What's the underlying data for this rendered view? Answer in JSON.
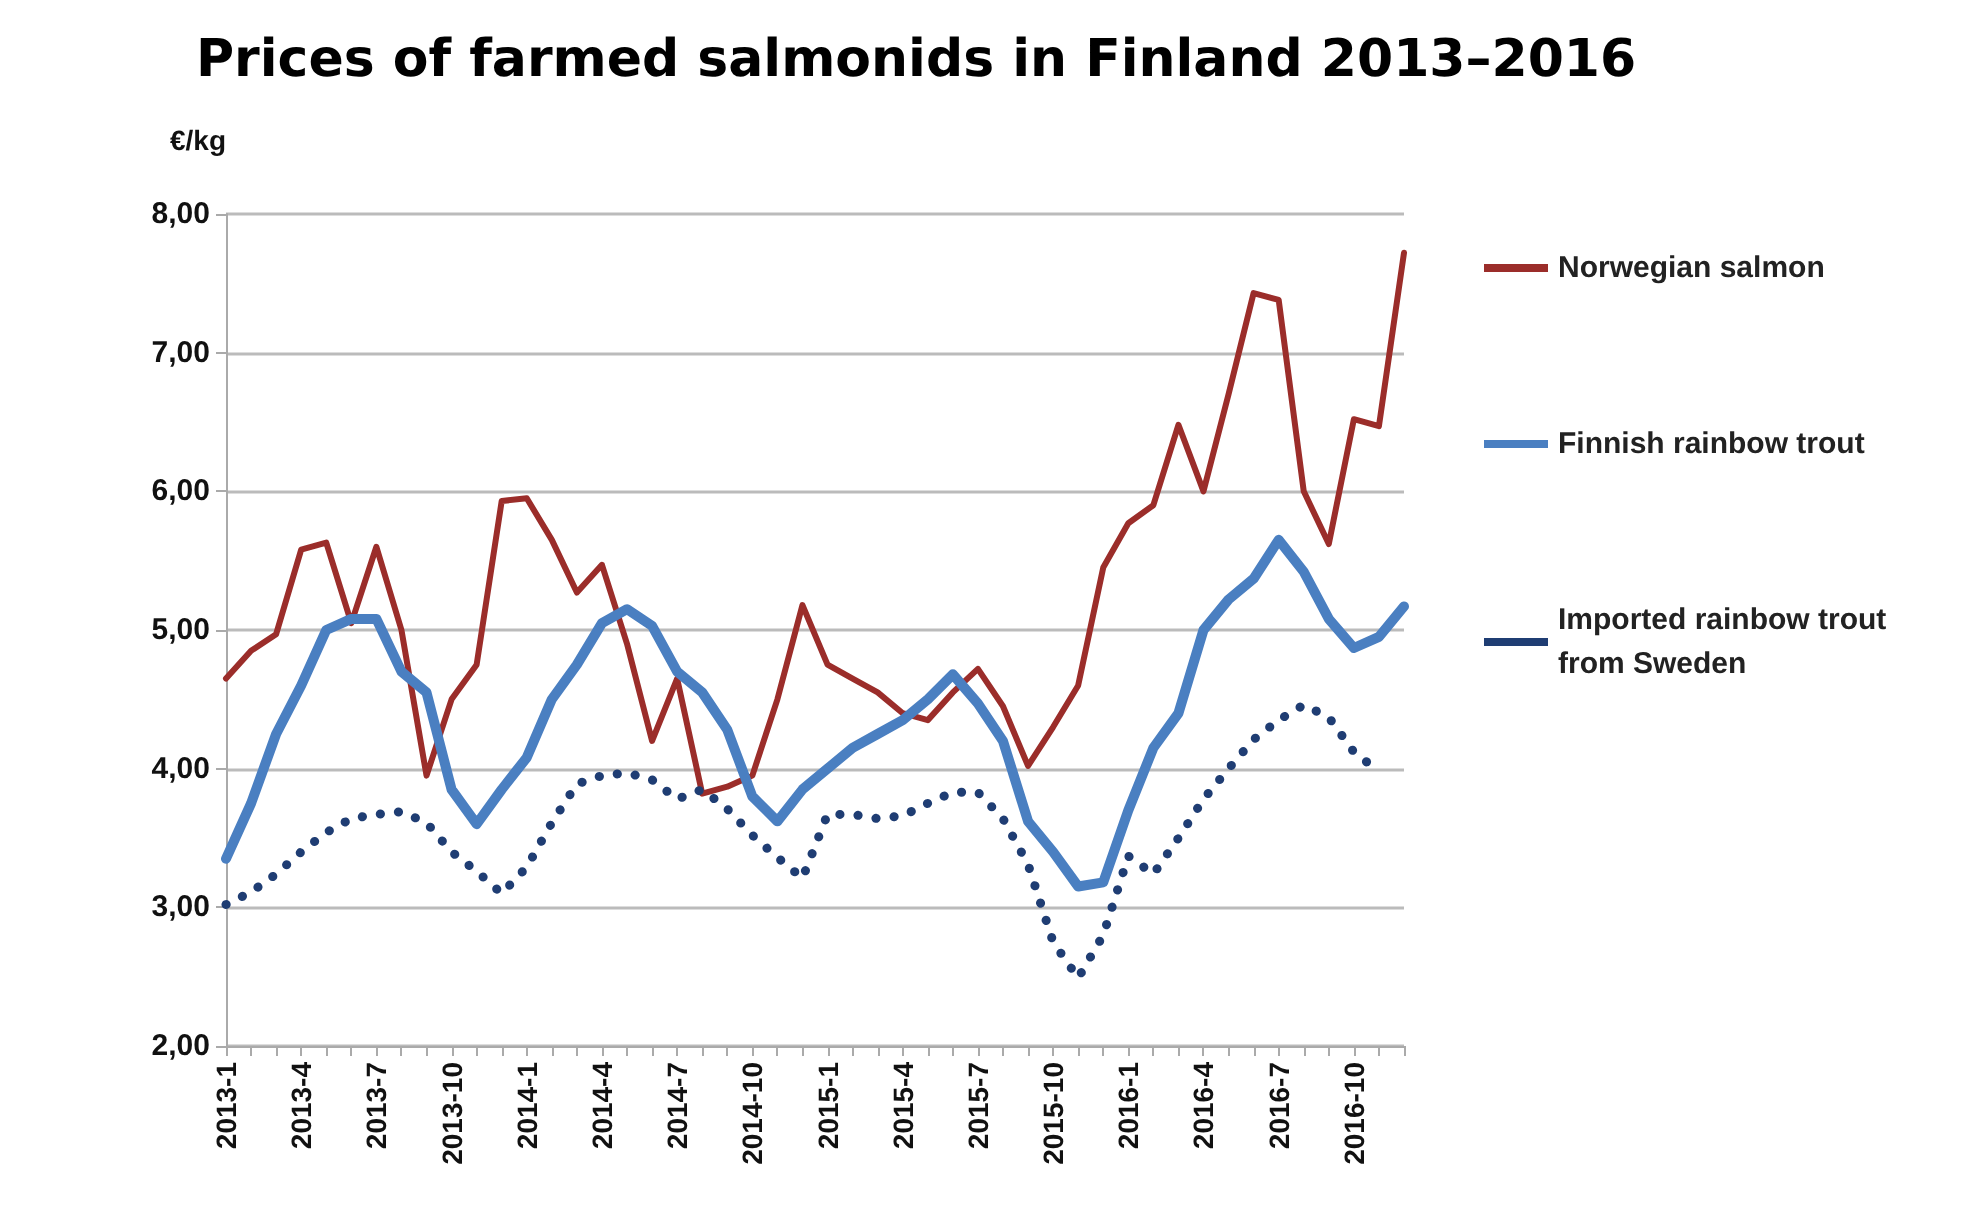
{
  "chart_data": {
    "type": "line",
    "title": "Prices of farmed salmonids in Finland 2013–2016",
    "ylabel": "€/kg",
    "categories": [
      "2013-1",
      null,
      null,
      "2013-4",
      null,
      null,
      "2013-7",
      null,
      null,
      "2013-10",
      null,
      null,
      "2014-1",
      null,
      null,
      "2014-4",
      null,
      null,
      "2014-7",
      null,
      null,
      "2014-10",
      null,
      null,
      "2015-1",
      null,
      null,
      "2015-4",
      null,
      null,
      "2015-7",
      null,
      null,
      "2015-10",
      null,
      null,
      "2016-1",
      null,
      null,
      "2016-4",
      null,
      null,
      "2016-7",
      null,
      null,
      "2016-10",
      null,
      null
    ],
    "series": [
      {
        "name": "Norwegian salmon",
        "color": "#9b2d2a",
        "line_style": "solid",
        "values": [
          4.65,
          4.85,
          4.97,
          5.58,
          5.63,
          5.05,
          5.6,
          5.0,
          3.95,
          4.5,
          4.75,
          5.93,
          5.95,
          5.65,
          5.27,
          5.47,
          4.9,
          4.2,
          4.65,
          3.82,
          3.87,
          3.95,
          4.5,
          5.18,
          4.75,
          4.65,
          4.55,
          4.4,
          4.35,
          4.55,
          4.72,
          4.45,
          4.02,
          4.3,
          4.6,
          5.45,
          5.77,
          5.9,
          6.48,
          6.0,
          6.7,
          7.43,
          7.38,
          6.0,
          5.62,
          6.52,
          6.47,
          7.72
        ]
      },
      {
        "name": "Finnish rainbow trout",
        "color": "#4a7fc1",
        "line_style": "solid",
        "values": [
          3.35,
          3.75,
          4.25,
          4.6,
          5.0,
          5.08,
          5.08,
          4.7,
          4.55,
          3.85,
          3.6,
          3.85,
          4.08,
          4.5,
          4.75,
          5.05,
          5.15,
          5.03,
          4.7,
          4.55,
          4.28,
          3.8,
          3.62,
          3.85,
          4.0,
          4.15,
          4.25,
          4.35,
          4.5,
          4.68,
          4.47,
          4.2,
          3.62,
          3.4,
          3.15,
          3.18,
          3.7,
          4.15,
          4.4,
          5.0,
          5.22,
          5.37,
          5.65,
          5.42,
          5.08,
          4.87,
          4.95,
          5.17
        ]
      },
      {
        "name": "Imported rainbow trout from Sweden",
        "color": "#1f3d73",
        "line_style": "dotted",
        "values": [
          3.02,
          3.11,
          3.24,
          3.4,
          3.54,
          3.64,
          3.67,
          3.69,
          3.61,
          3.4,
          3.26,
          3.1,
          3.29,
          3.61,
          3.89,
          3.95,
          3.97,
          3.92,
          3.78,
          3.85,
          3.71,
          3.52,
          3.36,
          3.21,
          3.67,
          3.67,
          3.64,
          3.66,
          3.75,
          3.83,
          3.83,
          3.64,
          3.31,
          2.75,
          2.49,
          2.8,
          3.37,
          3.24,
          3.5,
          3.78,
          4.0,
          4.21,
          4.35,
          4.46,
          4.37,
          4.12,
          3.98,
          null
        ]
      }
    ],
    "ylim": [
      2,
      8
    ],
    "yticks": [
      {
        "value": 2,
        "label": "2,00"
      },
      {
        "value": 3,
        "label": "3,00"
      },
      {
        "value": 4,
        "label": "4,00"
      },
      {
        "value": 5,
        "label": "5,00"
      },
      {
        "value": 6,
        "label": "6,00"
      },
      {
        "value": 7,
        "label": "7,00"
      },
      {
        "value": 8,
        "label": "8,00"
      }
    ],
    "grid": "y",
    "legend": "right",
    "marker": "none"
  }
}
